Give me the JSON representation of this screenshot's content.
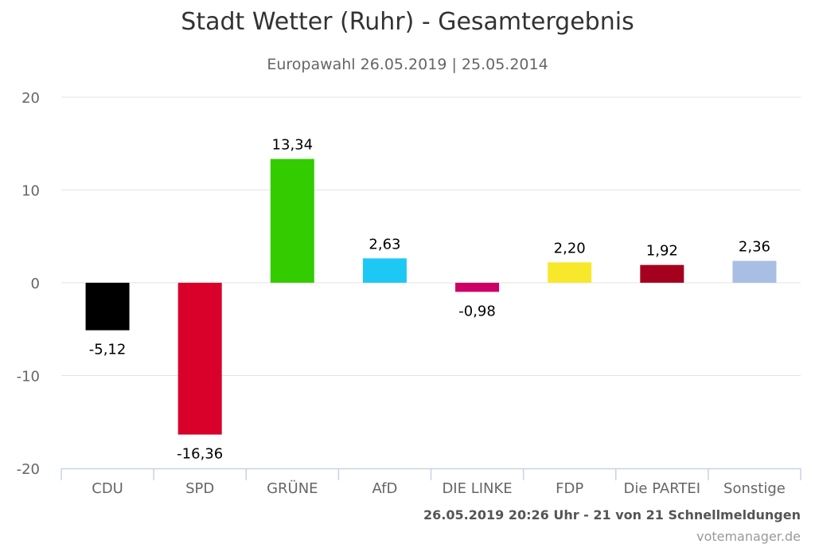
{
  "chart_data": {
    "type": "bar",
    "title": "Stadt Wetter (Ruhr) - Gesamtergebnis",
    "subtitle": "Europawahl 26.05.2019 | 25.05.2014",
    "categories": [
      "CDU",
      "SPD",
      "GRÜNE",
      "AfD",
      "DIE LINKE",
      "FDP",
      "Die PARTEI",
      "Sonstige"
    ],
    "values": [
      -5.12,
      -16.36,
      13.34,
      2.63,
      -0.98,
      2.2,
      1.92,
      2.36
    ],
    "value_labels": [
      "-5,12",
      "-16,36",
      "13,34",
      "2,63",
      "-0,98",
      "2,20",
      "1,92",
      "2,36"
    ],
    "colors": [
      "#000000",
      "#d9002a",
      "#33cc00",
      "#1ec8f5",
      "#cc0066",
      "#f8e82c",
      "#a6001f",
      "#a8bfe3"
    ],
    "ylim": [
      -20,
      20
    ],
    "yticks": [
      "20",
      "10",
      "0",
      "-10",
      "-20"
    ],
    "ytick_values": [
      20,
      10,
      0,
      -10,
      -20
    ],
    "xlabel": "",
    "ylabel": "",
    "grid": true
  },
  "footer": {
    "line1": "26.05.2019 20:26 Uhr - 21 von 21 Schnellmeldungen",
    "line2": "votemanager.de"
  }
}
